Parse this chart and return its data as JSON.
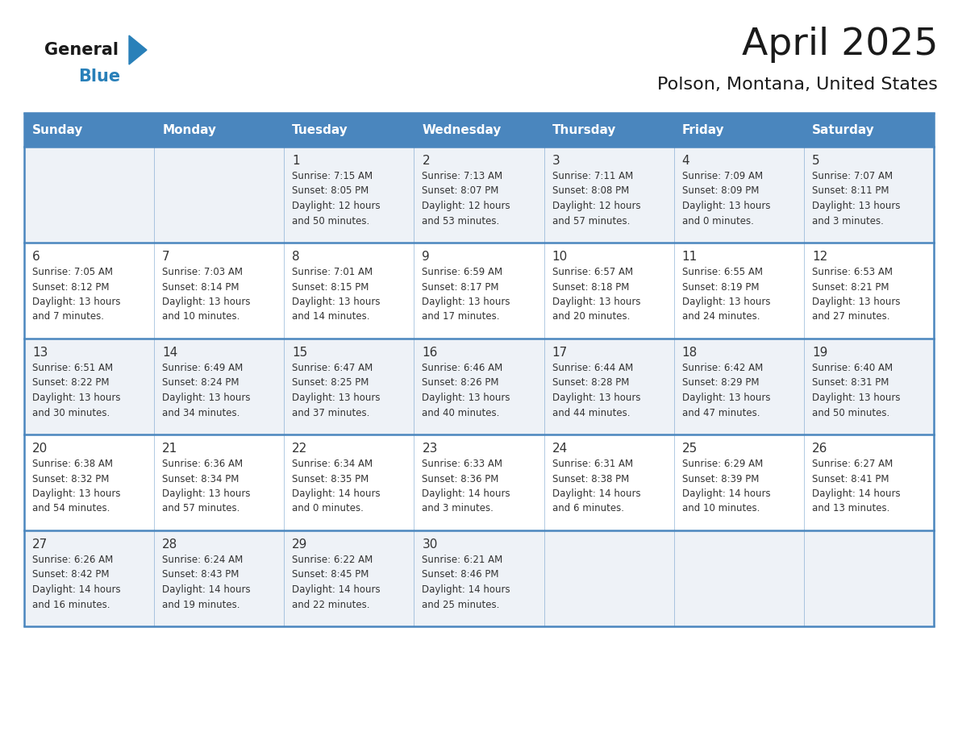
{
  "title": "April 2025",
  "subtitle": "Polson, Montana, United States",
  "days_of_week": [
    "Sunday",
    "Monday",
    "Tuesday",
    "Wednesday",
    "Thursday",
    "Friday",
    "Saturday"
  ],
  "header_bg": "#4a86be",
  "header_text": "#ffffff",
  "odd_row_bg": "#eef2f7",
  "even_row_bg": "#ffffff",
  "border_color": "#4a86be",
  "title_color": "#1a1a1a",
  "subtitle_color": "#1a1a1a",
  "cell_text_color": "#333333",
  "logo_black": "#1a1a1a",
  "logo_blue": "#2980b9",
  "weeks": [
    [
      {
        "day": "",
        "text": ""
      },
      {
        "day": "",
        "text": ""
      },
      {
        "day": "1",
        "text": "Sunrise: 7:15 AM\nSunset: 8:05 PM\nDaylight: 12 hours\nand 50 minutes."
      },
      {
        "day": "2",
        "text": "Sunrise: 7:13 AM\nSunset: 8:07 PM\nDaylight: 12 hours\nand 53 minutes."
      },
      {
        "day": "3",
        "text": "Sunrise: 7:11 AM\nSunset: 8:08 PM\nDaylight: 12 hours\nand 57 minutes."
      },
      {
        "day": "4",
        "text": "Sunrise: 7:09 AM\nSunset: 8:09 PM\nDaylight: 13 hours\nand 0 minutes."
      },
      {
        "day": "5",
        "text": "Sunrise: 7:07 AM\nSunset: 8:11 PM\nDaylight: 13 hours\nand 3 minutes."
      }
    ],
    [
      {
        "day": "6",
        "text": "Sunrise: 7:05 AM\nSunset: 8:12 PM\nDaylight: 13 hours\nand 7 minutes."
      },
      {
        "day": "7",
        "text": "Sunrise: 7:03 AM\nSunset: 8:14 PM\nDaylight: 13 hours\nand 10 minutes."
      },
      {
        "day": "8",
        "text": "Sunrise: 7:01 AM\nSunset: 8:15 PM\nDaylight: 13 hours\nand 14 minutes."
      },
      {
        "day": "9",
        "text": "Sunrise: 6:59 AM\nSunset: 8:17 PM\nDaylight: 13 hours\nand 17 minutes."
      },
      {
        "day": "10",
        "text": "Sunrise: 6:57 AM\nSunset: 8:18 PM\nDaylight: 13 hours\nand 20 minutes."
      },
      {
        "day": "11",
        "text": "Sunrise: 6:55 AM\nSunset: 8:19 PM\nDaylight: 13 hours\nand 24 minutes."
      },
      {
        "day": "12",
        "text": "Sunrise: 6:53 AM\nSunset: 8:21 PM\nDaylight: 13 hours\nand 27 minutes."
      }
    ],
    [
      {
        "day": "13",
        "text": "Sunrise: 6:51 AM\nSunset: 8:22 PM\nDaylight: 13 hours\nand 30 minutes."
      },
      {
        "day": "14",
        "text": "Sunrise: 6:49 AM\nSunset: 8:24 PM\nDaylight: 13 hours\nand 34 minutes."
      },
      {
        "day": "15",
        "text": "Sunrise: 6:47 AM\nSunset: 8:25 PM\nDaylight: 13 hours\nand 37 minutes."
      },
      {
        "day": "16",
        "text": "Sunrise: 6:46 AM\nSunset: 8:26 PM\nDaylight: 13 hours\nand 40 minutes."
      },
      {
        "day": "17",
        "text": "Sunrise: 6:44 AM\nSunset: 8:28 PM\nDaylight: 13 hours\nand 44 minutes."
      },
      {
        "day": "18",
        "text": "Sunrise: 6:42 AM\nSunset: 8:29 PM\nDaylight: 13 hours\nand 47 minutes."
      },
      {
        "day": "19",
        "text": "Sunrise: 6:40 AM\nSunset: 8:31 PM\nDaylight: 13 hours\nand 50 minutes."
      }
    ],
    [
      {
        "day": "20",
        "text": "Sunrise: 6:38 AM\nSunset: 8:32 PM\nDaylight: 13 hours\nand 54 minutes."
      },
      {
        "day": "21",
        "text": "Sunrise: 6:36 AM\nSunset: 8:34 PM\nDaylight: 13 hours\nand 57 minutes."
      },
      {
        "day": "22",
        "text": "Sunrise: 6:34 AM\nSunset: 8:35 PM\nDaylight: 14 hours\nand 0 minutes."
      },
      {
        "day": "23",
        "text": "Sunrise: 6:33 AM\nSunset: 8:36 PM\nDaylight: 14 hours\nand 3 minutes."
      },
      {
        "day": "24",
        "text": "Sunrise: 6:31 AM\nSunset: 8:38 PM\nDaylight: 14 hours\nand 6 minutes."
      },
      {
        "day": "25",
        "text": "Sunrise: 6:29 AM\nSunset: 8:39 PM\nDaylight: 14 hours\nand 10 minutes."
      },
      {
        "day": "26",
        "text": "Sunrise: 6:27 AM\nSunset: 8:41 PM\nDaylight: 14 hours\nand 13 minutes."
      }
    ],
    [
      {
        "day": "27",
        "text": "Sunrise: 6:26 AM\nSunset: 8:42 PM\nDaylight: 14 hours\nand 16 minutes."
      },
      {
        "day": "28",
        "text": "Sunrise: 6:24 AM\nSunset: 8:43 PM\nDaylight: 14 hours\nand 19 minutes."
      },
      {
        "day": "29",
        "text": "Sunrise: 6:22 AM\nSunset: 8:45 PM\nDaylight: 14 hours\nand 22 minutes."
      },
      {
        "day": "30",
        "text": "Sunrise: 6:21 AM\nSunset: 8:46 PM\nDaylight: 14 hours\nand 25 minutes."
      },
      {
        "day": "",
        "text": ""
      },
      {
        "day": "",
        "text": ""
      },
      {
        "day": "",
        "text": ""
      }
    ]
  ],
  "fig_width": 11.88,
  "fig_height": 9.18,
  "dpi": 100
}
